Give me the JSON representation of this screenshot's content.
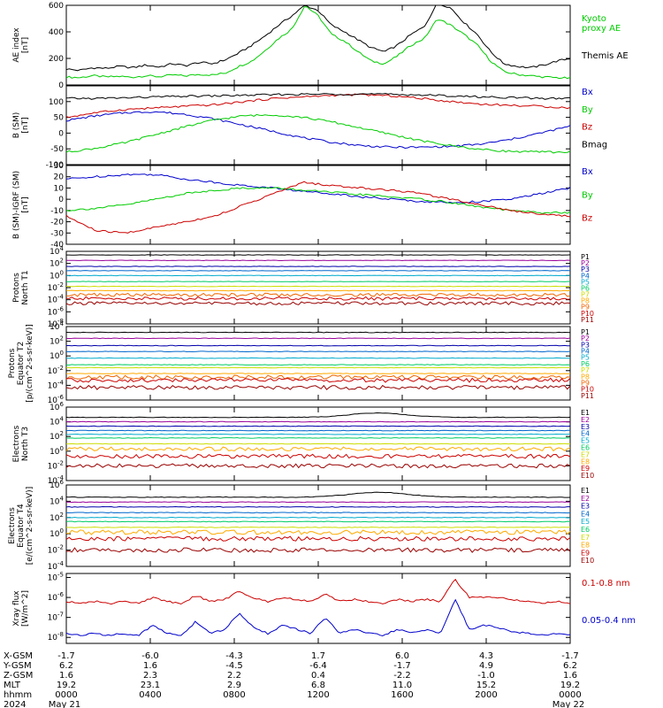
{
  "figure": {
    "x_ticks": [
      "0000",
      "0400",
      "0800",
      "1200",
      "1600",
      "2000",
      "0000"
    ]
  },
  "ephemeris": {
    "rows": [
      {
        "label": "X-GSM",
        "values": [
          "-1.7",
          "-6.0",
          "-4.3",
          "1.7",
          "6.0",
          "4.3",
          "-1.7"
        ]
      },
      {
        "label": "Y-GSM",
        "values": [
          "6.2",
          "1.6",
          "-4.5",
          "-6.4",
          "-1.7",
          "4.9",
          "6.2"
        ]
      },
      {
        "label": "Z-GSM",
        "values": [
          "1.6",
          "2.3",
          "2.2",
          "0.4",
          "-2.2",
          "-1.0",
          "1.6"
        ]
      },
      {
        "label": "MLT",
        "values": [
          "19.2",
          "23.1",
          "2.9",
          "6.8",
          "11.0",
          "15.2",
          "19.2"
        ]
      },
      {
        "label": "hhmm",
        "values": [
          "0000",
          "0400",
          "0800",
          "1200",
          "1600",
          "2000",
          "0000"
        ]
      }
    ],
    "year": "2024",
    "date_start": "May 21",
    "date_end": "May 22"
  },
  "chart_data": [
    {
      "type": "line",
      "ylabel": "AE index\n[nT]",
      "ylim": [
        0,
        600
      ],
      "y_ticks": [
        "0",
        "200",
        "400",
        "600"
      ],
      "series": [
        {
          "name": "Kyoto\nproxy AE",
          "color": "#00cc00",
          "values": [
            60,
            55,
            70,
            60,
            65,
            58,
            70,
            62,
            75,
            68,
            80,
            75,
            90,
            140,
            180,
            260,
            350,
            420,
            600,
            520,
            380,
            330,
            250,
            180,
            160,
            220,
            300,
            350,
            500,
            450,
            380,
            300,
            180,
            100,
            80,
            70,
            60,
            55,
            50
          ]
        },
        {
          "name": "Themis AE",
          "color": "#000000",
          "values": [
            120,
            110,
            130,
            125,
            140,
            130,
            150,
            135,
            160,
            145,
            170,
            160,
            190,
            240,
            300,
            370,
            450,
            520,
            600,
            560,
            450,
            400,
            340,
            280,
            250,
            300,
            380,
            440,
            620,
            580,
            470,
            380,
            250,
            160,
            140,
            130,
            150,
            180,
            200
          ]
        }
      ]
    },
    {
      "type": "line",
      "ylabel": "B (SM)\n[nT]",
      "ylim": [
        -100,
        150
      ],
      "y_ticks": [
        "-100",
        "-50",
        "0",
        "50",
        "100"
      ],
      "series": [
        {
          "name": "Bx",
          "color": "#0000cc",
          "values": [
            40,
            55,
            65,
            68,
            60,
            45,
            25,
            5,
            -15,
            -30,
            -40,
            -45,
            -45,
            -42,
            -35,
            -20,
            0,
            22
          ]
        },
        {
          "name": "By",
          "color": "#00cc00",
          "values": [
            -60,
            -48,
            -30,
            -5,
            20,
            42,
            55,
            58,
            50,
            35,
            15,
            -5,
            -25,
            -40,
            -52,
            -58,
            -60,
            -60
          ]
        },
        {
          "name": "Bz",
          "color": "#cc0000",
          "values": [
            50,
            65,
            75,
            80,
            85,
            90,
            100,
            110,
            115,
            120,
            122,
            118,
            110,
            100,
            92,
            88,
            85,
            80
          ]
        },
        {
          "name": "Bmag",
          "color": "#000000",
          "values": [
            110,
            110,
            112,
            115,
            117,
            118,
            120,
            122,
            123,
            124,
            124,
            123,
            121,
            118,
            115,
            113,
            110,
            110
          ]
        }
      ]
    },
    {
      "type": "line",
      "ylabel": "B (SM)-IGRF (SM)\n[nT]",
      "ylim": [
        -40,
        30
      ],
      "y_ticks": [
        "-40",
        "-30",
        "-20",
        "-10",
        "0",
        "10",
        "20",
        "30"
      ],
      "series": [
        {
          "name": "Bx",
          "color": "#0000cc",
          "values": [
            18,
            20,
            22,
            22,
            18,
            15,
            12,
            10,
            7,
            5,
            2,
            0,
            -2,
            -3,
            -2,
            0,
            5,
            10
          ]
        },
        {
          "name": "By",
          "color": "#00cc00",
          "values": [
            -10,
            -8,
            -5,
            0,
            5,
            8,
            10,
            10,
            8,
            6,
            4,
            2,
            0,
            -3,
            -7,
            -10,
            -12,
            -12
          ]
        },
        {
          "name": "Bz",
          "color": "#cc0000",
          "values": [
            -15,
            -28,
            -30,
            -25,
            -20,
            -15,
            -5,
            5,
            15,
            12,
            10,
            8,
            5,
            0,
            -5,
            -10,
            -13,
            -15
          ]
        }
      ]
    },
    {
      "type": "line",
      "ylabel": "Protons\nNorth T1",
      "yscale": "log",
      "ylim": [
        -8,
        4
      ],
      "y_ticks": [
        "10^4",
        "10^2",
        "10^0",
        "10^-2",
        "10^-4",
        "10^-6",
        "10^-8"
      ],
      "series": [
        {
          "name": "P1",
          "color": "#000000",
          "level": 3.4
        },
        {
          "name": "P2",
          "color": "#990099",
          "level": 2.5
        },
        {
          "name": "P3",
          "color": "#0000aa",
          "level": 1.5
        },
        {
          "name": "P4",
          "color": "#0066cc",
          "level": 0.8
        },
        {
          "name": "P5",
          "color": "#00aacc",
          "level": 0.0
        },
        {
          "name": "P6",
          "color": "#00cc66",
          "level": -1.0
        },
        {
          "name": "P7",
          "color": "#ccdd00",
          "level": -1.8
        },
        {
          "name": "P8",
          "color": "#ffaa00",
          "level": -2.5
        },
        {
          "name": "P9",
          "color": "#ee6600",
          "level": -3.2
        },
        {
          "name": "P10",
          "color": "#cc0000",
          "level": -3.8
        },
        {
          "name": "P11",
          "color": "#990000",
          "level": -4.6
        }
      ]
    },
    {
      "type": "line",
      "ylabel": "Protons\nEquator T2\n[p/(cm^2-s-sr-keV)]",
      "yscale": "log",
      "ylim": [
        -6,
        4
      ],
      "y_ticks": [
        "10^4",
        "10^2",
        "10^0",
        "10^-2",
        "10^-4",
        "10^-6"
      ],
      "series": [
        {
          "name": "P1",
          "color": "#000000",
          "level": 3.2
        },
        {
          "name": "P2",
          "color": "#990099",
          "level": 2.4
        },
        {
          "name": "P3",
          "color": "#0000aa",
          "level": 1.4
        },
        {
          "name": "P4",
          "color": "#0066cc",
          "level": 0.6
        },
        {
          "name": "P5",
          "color": "#00aacc",
          "level": -0.3
        },
        {
          "name": "P6",
          "color": "#00cc66",
          "level": -1.2
        },
        {
          "name": "P7",
          "color": "#ccdd00",
          "level": -1.6
        },
        {
          "name": "P8",
          "color": "#ffaa00",
          "level": -2.4
        },
        {
          "name": "P9",
          "color": "#ee6600",
          "level": -2.9
        },
        {
          "name": "P10",
          "color": "#cc0000",
          "level": -3.3
        },
        {
          "name": "P11",
          "color": "#990000",
          "level": -4.3
        }
      ]
    },
    {
      "type": "line",
      "ylabel": "Electrons\nNorth T3",
      "yscale": "log",
      "ylim": [
        -4,
        6
      ],
      "y_ticks": [
        "10^6",
        "10^4",
        "10^2",
        "10^0",
        "10^-2",
        "10^-4"
      ],
      "series": [
        {
          "name": "E1",
          "color": "#000000",
          "level": 4.6
        },
        {
          "name": "E2",
          "color": "#990099",
          "level": 4.0
        },
        {
          "name": "E3",
          "color": "#0000aa",
          "level": 3.4
        },
        {
          "name": "E4",
          "color": "#0066cc",
          "level": 2.8
        },
        {
          "name": "E5",
          "color": "#00aacc",
          "level": 2.3
        },
        {
          "name": "E6",
          "color": "#00cc66",
          "level": 1.8
        },
        {
          "name": "E7",
          "color": "#ccdd00",
          "level": 1.0
        },
        {
          "name": "E8",
          "color": "#ffaa00",
          "level": 0.3
        },
        {
          "name": "E9",
          "color": "#cc0000",
          "level": -0.7
        },
        {
          "name": "E10",
          "color": "#990000",
          "level": -2.0
        }
      ]
    },
    {
      "type": "line",
      "ylabel": "Electrons\nEquator T4\n[e/(cm^2-s-sr-keV)]",
      "yscale": "log",
      "ylim": [
        -4,
        6
      ],
      "y_ticks": [
        "10^6",
        "10^4",
        "10^2",
        "10^0",
        "10^-2",
        "10^-4"
      ],
      "series": [
        {
          "name": "E1",
          "color": "#000000",
          "level": 4.5
        },
        {
          "name": "E2",
          "color": "#990099",
          "level": 3.9
        },
        {
          "name": "E3",
          "color": "#0000aa",
          "level": 3.3
        },
        {
          "name": "E4",
          "color": "#0066cc",
          "level": 2.6
        },
        {
          "name": "E5",
          "color": "#00aacc",
          "level": 2.0
        },
        {
          "name": "E6",
          "color": "#00cc66",
          "level": 1.5
        },
        {
          "name": "E7",
          "color": "#ccdd00",
          "level": 0.8
        },
        {
          "name": "E8",
          "color": "#ffaa00",
          "level": 0.2
        },
        {
          "name": "E9",
          "color": "#cc0000",
          "level": -0.6
        },
        {
          "name": "E10",
          "color": "#990000",
          "level": -2.0
        }
      ]
    },
    {
      "type": "line",
      "ylabel": "Xray flux\n[W/m^2]",
      "yscale": "log",
      "ylim": [
        -8.3,
        -4.8
      ],
      "y_ticks": [
        "10^-5",
        "10^-6",
        "10^-7",
        "10^-8"
      ],
      "series": [
        {
          "name": "0.1-0.8 nm",
          "color": "#cc0000",
          "values": [
            -6.2,
            -6.3,
            -6.2,
            -6.3,
            -6.2,
            -6.3,
            -6.0,
            -6.2,
            -6.3,
            -5.9,
            -6.2,
            -6.1,
            -5.7,
            -6.0,
            -6.2,
            -6.0,
            -6.1,
            -6.2,
            -5.8,
            -6.2,
            -6.1,
            -6.2,
            -6.3,
            -6.1,
            -6.2,
            -6.1,
            -6.2,
            -5.1,
            -6.0,
            -6.0,
            -6.0,
            -6.1,
            -6.2,
            -6.3,
            -6.2,
            -6.3
          ]
        },
        {
          "name": "0.05-0.4 nm",
          "color": "#0000cc",
          "values": [
            -7.8,
            -7.9,
            -7.8,
            -7.9,
            -7.8,
            -7.9,
            -7.4,
            -7.8,
            -7.9,
            -7.2,
            -7.8,
            -7.6,
            -6.8,
            -7.5,
            -7.8,
            -7.4,
            -7.6,
            -7.8,
            -7.0,
            -7.8,
            -7.6,
            -7.8,
            -7.9,
            -7.6,
            -7.8,
            -7.6,
            -7.8,
            -6.1,
            -7.6,
            -7.4,
            -7.5,
            -7.7,
            -7.8,
            -7.9,
            -7.8,
            -7.9
          ]
        }
      ]
    }
  ]
}
